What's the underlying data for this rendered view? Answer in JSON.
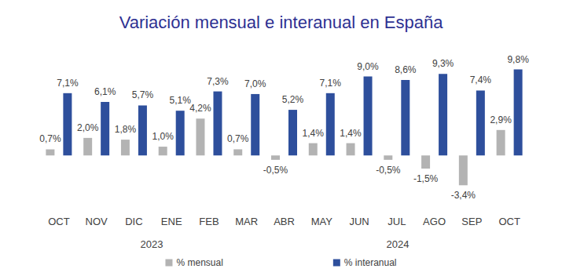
{
  "chart_data": {
    "type": "bar",
    "title": "Variación mensual e interanual en España",
    "categories": [
      "OCT",
      "NOV",
      "DIC",
      "ENE",
      "FEB",
      "MAR",
      "ABR",
      "MAY",
      "JUN",
      "JUL",
      "AGO",
      "SEP",
      "OCT"
    ],
    "series": [
      {
        "name": "% mensual",
        "color": "#b3b3b3",
        "values": [
          0.7,
          2.0,
          1.8,
          1.0,
          4.2,
          0.7,
          -0.5,
          1.4,
          1.4,
          -0.5,
          -1.5,
          -3.4,
          2.9
        ],
        "value_labels": [
          "0,7%",
          "2,0%",
          "1,8%",
          "1,0%",
          "4,2%",
          "0,7%",
          "-0,5%",
          "1,4%",
          "1,4%",
          "-0,5%",
          "-1,5%",
          "-3,4%",
          "2,9%"
        ]
      },
      {
        "name": "% interanual",
        "color": "#2e4f9c",
        "values": [
          7.1,
          6.1,
          5.7,
          5.1,
          7.3,
          7.0,
          5.2,
          7.1,
          9.0,
          8.6,
          9.3,
          7.4,
          9.8
        ],
        "value_labels": [
          "7,1%",
          "6,1%",
          "5,7%",
          "5,1%",
          "7,3%",
          "7,0%",
          "5,2%",
          "7,1%",
          "9,0%",
          "8,6%",
          "9,3%",
          "7,4%",
          "9,8%"
        ]
      }
    ],
    "ylim": [
      -4,
      12
    ],
    "yticks": [
      -4,
      0,
      4,
      8,
      12
    ],
    "grid": false,
    "legend": "bottom",
    "data_labels": true,
    "tick_labels": "x",
    "annotations": [
      "2023",
      "2024"
    ]
  }
}
